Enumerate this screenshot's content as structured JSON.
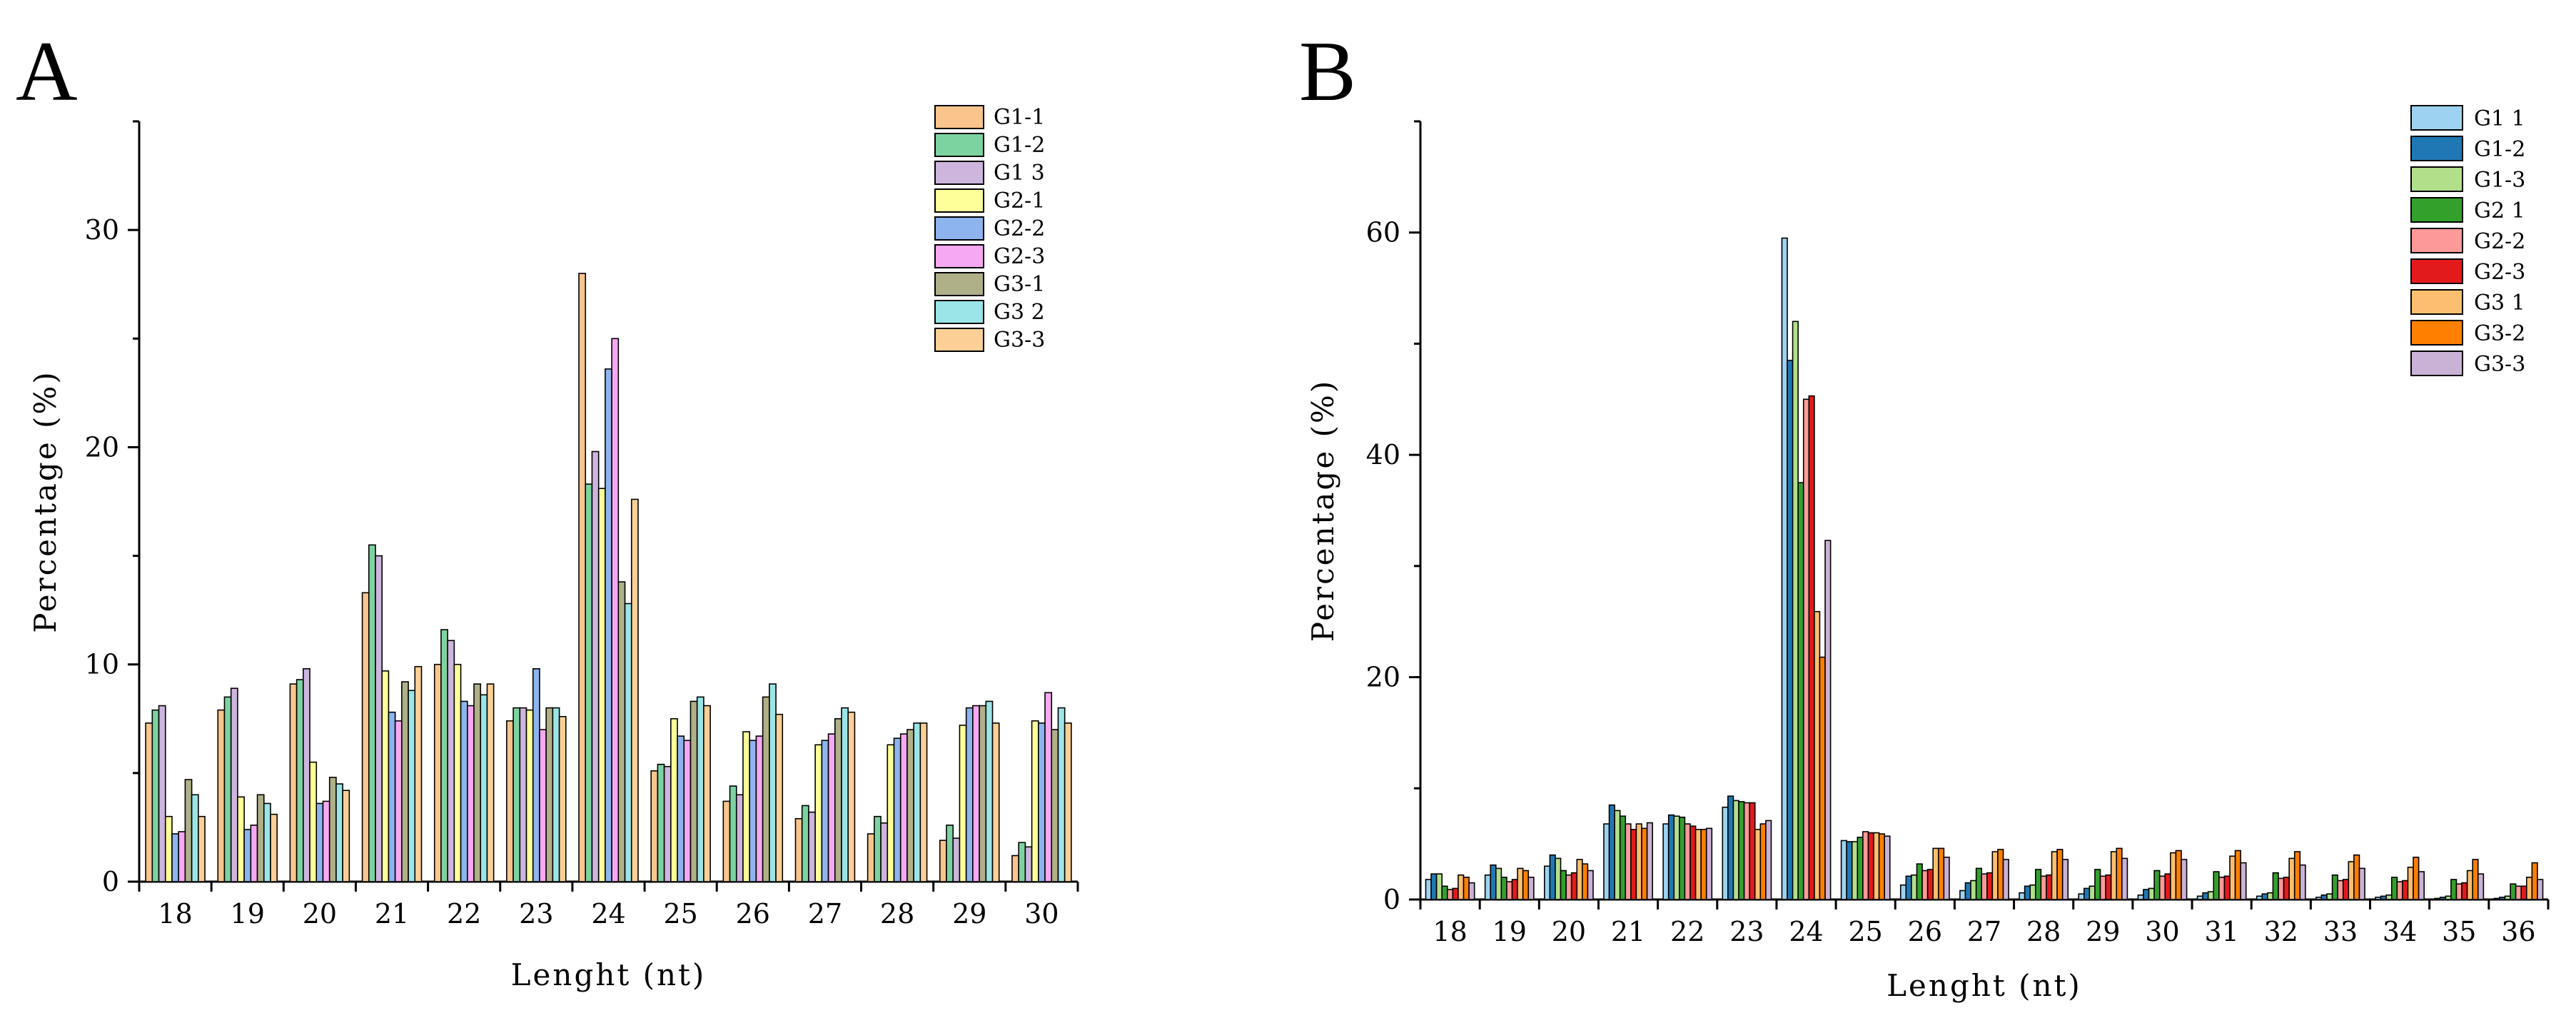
{
  "figure_labels": {
    "panel_a": "A",
    "panel_b": "B"
  },
  "chart_data": [
    {
      "id": "A",
      "type": "bar",
      "title": "",
      "panel_label": "A",
      "xlabel": "Lenght (nt)",
      "ylabel": "Percentage (%)",
      "ylim": [
        0,
        35
      ],
      "yticks": [
        0,
        10,
        20,
        30
      ],
      "grid": false,
      "legend_position": "top-right",
      "categories": [
        "18",
        "19",
        "20",
        "21",
        "22",
        "23",
        "24",
        "25",
        "26",
        "27",
        "28",
        "29",
        "30"
      ],
      "series": [
        {
          "name": "G1-1",
          "color": "#F9C58D",
          "values": [
            7.3,
            7.9,
            9.1,
            13.3,
            10.0,
            7.4,
            28.0,
            5.1,
            3.7,
            2.9,
            2.2,
            1.9,
            1.2
          ]
        },
        {
          "name": "G1-2",
          "color": "#7DD3A0",
          "values": [
            7.9,
            8.5,
            9.3,
            15.5,
            11.6,
            8.0,
            18.3,
            5.4,
            4.4,
            3.5,
            3.0,
            2.6,
            1.8
          ]
        },
        {
          "name": "G1 3",
          "color": "#CDB5DE",
          "values": [
            8.1,
            8.9,
            9.8,
            15.0,
            11.1,
            8.0,
            19.8,
            5.3,
            4.0,
            3.2,
            2.7,
            2.0,
            1.6
          ]
        },
        {
          "name": "G2-1",
          "color": "#FFFF99",
          "values": [
            3.0,
            3.9,
            5.5,
            9.7,
            10.0,
            7.9,
            18.1,
            7.5,
            6.9,
            6.3,
            6.3,
            7.2,
            7.4
          ]
        },
        {
          "name": "G2-2",
          "color": "#8DB4EE",
          "values": [
            2.2,
            2.4,
            3.6,
            7.8,
            8.3,
            9.8,
            23.6,
            6.7,
            6.5,
            6.5,
            6.6,
            8.0,
            7.3
          ]
        },
        {
          "name": "G2-3",
          "color": "#F7A8F2",
          "values": [
            2.3,
            2.6,
            3.7,
            7.4,
            8.1,
            7.0,
            25.0,
            6.5,
            6.7,
            6.8,
            6.8,
            8.1,
            8.7
          ]
        },
        {
          "name": "G3-1",
          "color": "#B0B088",
          "values": [
            4.7,
            4.0,
            4.8,
            9.2,
            9.1,
            8.0,
            13.8,
            8.3,
            8.5,
            7.5,
            7.0,
            8.1,
            7.0
          ]
        },
        {
          "name": "G3 2",
          "color": "#9BE5E8",
          "values": [
            4.0,
            3.6,
            4.5,
            8.8,
            8.6,
            8.0,
            12.8,
            8.5,
            9.1,
            8.0,
            7.3,
            8.3,
            8.0
          ]
        },
        {
          "name": "G3-3",
          "color": "#FCCF96",
          "values": [
            3.0,
            3.1,
            4.2,
            9.9,
            9.1,
            7.6,
            17.6,
            8.1,
            7.7,
            7.8,
            7.3,
            7.3,
            7.3
          ]
        }
      ]
    },
    {
      "id": "B",
      "type": "bar",
      "title": "",
      "panel_label": "B",
      "xlabel": "Lenght (nt)",
      "ylabel": "Percentage (%)",
      "ylim": [
        0,
        70
      ],
      "yticks": [
        0,
        20,
        40,
        60
      ],
      "grid": false,
      "legend_position": "top-right",
      "categories": [
        "18",
        "19",
        "20",
        "21",
        "22",
        "23",
        "24",
        "25",
        "26",
        "27",
        "28",
        "29",
        "30",
        "31",
        "32",
        "33",
        "34",
        "35",
        "36"
      ],
      "series": [
        {
          "name": "G1 1",
          "color": "#9DD3F0",
          "values": [
            1.8,
            2.2,
            3.0,
            6.8,
            6.8,
            8.3,
            59.5,
            5.3,
            1.3,
            0.8,
            0.6,
            0.5,
            0.4,
            0.3,
            0.3,
            0.2,
            0.2,
            0.1,
            0.1
          ]
        },
        {
          "name": "G1-2",
          "color": "#1F78B4",
          "values": [
            2.3,
            3.1,
            4.0,
            8.5,
            7.6,
            9.3,
            48.5,
            5.2,
            2.1,
            1.5,
            1.2,
            1.0,
            0.9,
            0.6,
            0.5,
            0.4,
            0.3,
            0.2,
            0.2
          ]
        },
        {
          "name": "G1-3",
          "color": "#B2DF8A",
          "values": [
            2.3,
            2.8,
            3.7,
            8.0,
            7.5,
            8.9,
            52.0,
            5.2,
            2.2,
            1.7,
            1.3,
            1.2,
            1.0,
            0.7,
            0.6,
            0.5,
            0.4,
            0.3,
            0.3
          ]
        },
        {
          "name": "G2 1",
          "color": "#33A02C",
          "values": [
            1.2,
            2.0,
            2.6,
            7.5,
            7.4,
            8.8,
            37.5,
            5.6,
            3.2,
            2.8,
            2.7,
            2.7,
            2.6,
            2.5,
            2.4,
            2.2,
            2.0,
            1.8,
            1.4
          ]
        },
        {
          "name": "G2-2",
          "color": "#FB9A99",
          "values": [
            0.9,
            1.6,
            2.2,
            6.8,
            6.8,
            8.7,
            45.0,
            6.1,
            2.6,
            2.3,
            2.1,
            2.1,
            2.1,
            2.0,
            1.9,
            1.7,
            1.6,
            1.4,
            1.2
          ]
        },
        {
          "name": "G2-3",
          "color": "#E31A1C",
          "values": [
            1.0,
            1.8,
            2.4,
            6.3,
            6.6,
            8.7,
            45.3,
            6.0,
            2.7,
            2.4,
            2.2,
            2.2,
            2.3,
            2.1,
            2.0,
            1.8,
            1.7,
            1.5,
            1.2
          ]
        },
        {
          "name": "G3 1",
          "color": "#FDBF6F",
          "values": [
            2.2,
            2.8,
            3.6,
            6.8,
            6.3,
            6.3,
            25.9,
            6.0,
            4.6,
            4.3,
            4.3,
            4.3,
            4.2,
            3.9,
            3.7,
            3.4,
            2.9,
            2.6,
            2.0
          ]
        },
        {
          "name": "G3-2",
          "color": "#FF7F00",
          "values": [
            2.0,
            2.6,
            3.2,
            6.4,
            6.3,
            6.8,
            21.8,
            5.9,
            4.6,
            4.5,
            4.5,
            4.6,
            4.4,
            4.4,
            4.3,
            4.0,
            3.8,
            3.6,
            3.3
          ]
        },
        {
          "name": "G3-3",
          "color": "#CAB2D6",
          "values": [
            1.5,
            2.0,
            2.6,
            6.9,
            6.4,
            7.1,
            32.3,
            5.7,
            3.8,
            3.6,
            3.6,
            3.7,
            3.6,
            3.3,
            3.1,
            2.8,
            2.5,
            2.3,
            1.8
          ]
        }
      ]
    }
  ]
}
